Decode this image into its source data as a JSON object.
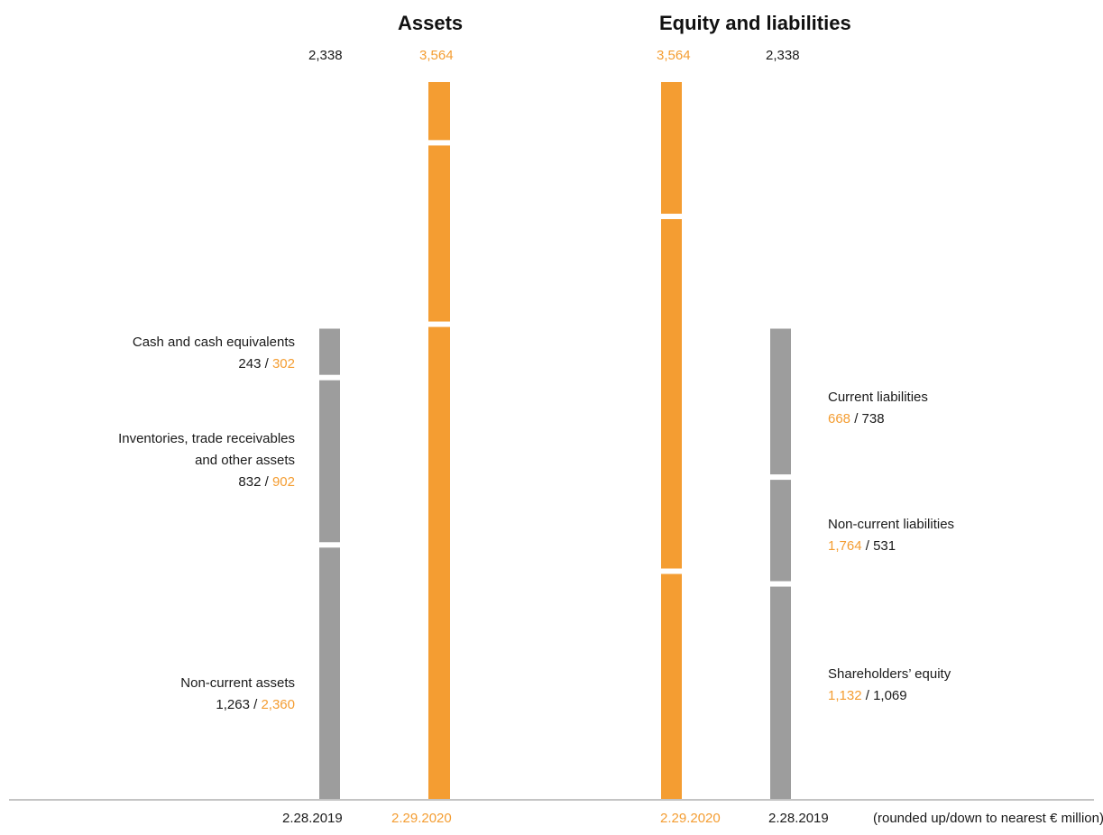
{
  "colors": {
    "current": "#f49d32",
    "prior": "#9d9d9d",
    "text": "#1a1a1a",
    "axis": "#8a8a8a"
  },
  "headings": {
    "assets": "Assets",
    "equity_liabilities": "Equity and liabilities"
  },
  "dates": {
    "prior": "2.28.2019",
    "current": "2.29.2020"
  },
  "note": "(rounded up/down to nearest € million)",
  "chart_data": {
    "type": "bar",
    "title": "",
    "unit": "€ million",
    "stacked": true,
    "totals": {
      "prior": "2,338",
      "current": "3,564"
    },
    "assets": {
      "segments": [
        {
          "name": "Non-current assets",
          "label_lines": [
            "Non-current assets"
          ],
          "prior_text": "1,263",
          "current_text": "2,360",
          "prior": 1263,
          "current": 2360
        },
        {
          "name": "Inventories, trade receivables and other assets",
          "label_lines": [
            "Inventories, trade receivables",
            "and other assets"
          ],
          "prior_text": "832",
          "current_text": "902",
          "prior": 832,
          "current": 902
        },
        {
          "name": "Cash and cash equivalents",
          "label_lines": [
            "Cash and cash equivalents"
          ],
          "prior_text": "243",
          "current_text": "302",
          "prior": 243,
          "current": 302
        }
      ]
    },
    "equity_liabilities": {
      "segments": [
        {
          "name": "Shareholders’ equity",
          "label_lines": [
            "Shareholders’ equity"
          ],
          "current_text": "1,132",
          "prior_text": "1,069",
          "current": 1132,
          "prior": 1069
        },
        {
          "name": "Non-current liabilities",
          "label_lines": [
            "Non-current liabilities"
          ],
          "current_text": "1,764",
          "prior_text": "531",
          "current": 1764,
          "prior": 531
        },
        {
          "name": "Current liabilities",
          "label_lines": [
            "Current liabilities"
          ],
          "current_text": "668",
          "prior_text": "738",
          "current": 668,
          "prior": 738
        }
      ]
    }
  }
}
